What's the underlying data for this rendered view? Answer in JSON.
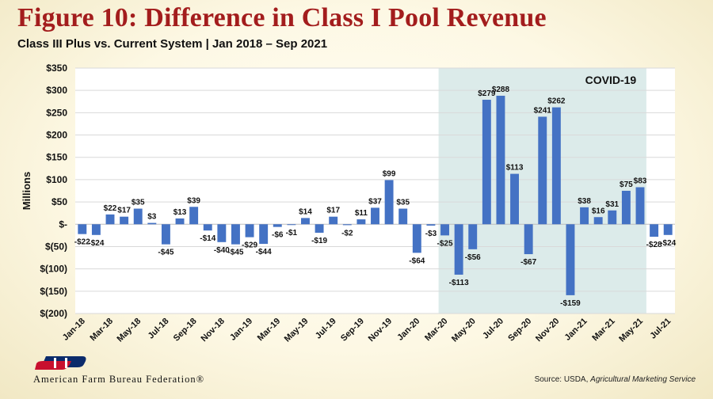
{
  "page": {
    "title": "Figure 10: Difference in Class I Pool Revenue",
    "subtitle": "Class III Plus vs. Current System | Jan 2018 – Sep 2021"
  },
  "footer": {
    "org_name": "American Farm Bureau Federation®",
    "source_prefix": "Source: USDA, ",
    "source_italic": "Agricultural Marketing Service"
  },
  "colors": {
    "bar": "#4472c4",
    "title": "#a31d1d",
    "covid_band": "#d6e7e6",
    "logo_blue": "#0b2b6b"
  },
  "chart_data": {
    "type": "bar",
    "ylabel": "Millions",
    "xlabel": "",
    "ylim": [
      -200,
      350
    ],
    "yticks": [
      350,
      300,
      250,
      200,
      150,
      100,
      50,
      0,
      -50,
      -100,
      -150,
      -200
    ],
    "ytick_labels": [
      "$350",
      "$300",
      "$250",
      "$200",
      "$150",
      "$100",
      "$50",
      "$-",
      "$(50)",
      "$(100)",
      "$(150)",
      "$(200)"
    ],
    "grid": true,
    "categories": [
      "Jan-18",
      "Feb-18",
      "Mar-18",
      "Apr-18",
      "May-18",
      "Jun-18",
      "Jul-18",
      "Aug-18",
      "Sep-18",
      "Oct-18",
      "Nov-18",
      "Dec-18",
      "Jan-19",
      "Feb-19",
      "Mar-19",
      "Apr-19",
      "May-19",
      "Jun-19",
      "Jul-19",
      "Aug-19",
      "Sep-19",
      "Oct-19",
      "Nov-19",
      "Dec-19",
      "Jan-20",
      "Feb-20",
      "Mar-20",
      "Apr-20",
      "May-20",
      "Jun-20",
      "Jul-20",
      "Aug-20",
      "Sep-20",
      "Oct-20",
      "Nov-20",
      "Dec-20",
      "Jan-21",
      "Feb-21",
      "Mar-21",
      "Apr-21",
      "May-21",
      "Jun-21",
      "Jul-21"
    ],
    "xtick_labels": [
      "Jan-18",
      "Mar-18",
      "May-18",
      "Jul-18",
      "Sep-18",
      "Nov-18",
      "Jan-19",
      "Mar-19",
      "May-19",
      "Jul-19",
      "Sep-19",
      "Nov-19",
      "Jan-20",
      "Mar-20",
      "May-20",
      "Jul-20",
      "Sep-20",
      "Nov-20",
      "Jan-21",
      "Mar-21",
      "May-21",
      "Jul-21"
    ],
    "values": [
      -22,
      -24,
      22,
      17,
      35,
      3,
      -45,
      13,
      39,
      -14,
      -40,
      -45,
      -29,
      -44,
      -6,
      -1,
      14,
      -19,
      17,
      -2,
      11,
      37,
      99,
      35,
      -64,
      -3,
      -25,
      -113,
      -56,
      279,
      288,
      113,
      -67,
      241,
      262,
      -159,
      38,
      16,
      31,
      75,
      83,
      -28,
      -24
    ],
    "data_labels": [
      "-$22",
      "-$24",
      "$22",
      "$17",
      "$35",
      "$3",
      "-$45",
      "$13",
      "$39",
      "-$14",
      "-$40",
      "-$45",
      "-$29",
      "-$44",
      "-$6",
      "-$1",
      "$14",
      "-$19",
      "$17",
      "-$2",
      "$11",
      "$37",
      "$99",
      "$35",
      "-$64",
      "-$3",
      "-$25",
      "-$113",
      "-$56",
      "$279",
      "$288",
      "$113",
      "-$67",
      "$241",
      "$262",
      "-$159",
      "$38",
      "$16",
      "$31",
      "$75",
      "$83",
      "-$28",
      "-$24"
    ],
    "annotation": {
      "label": "COVID-19",
      "start_category": "Mar-20",
      "end_category": "May-21"
    }
  }
}
